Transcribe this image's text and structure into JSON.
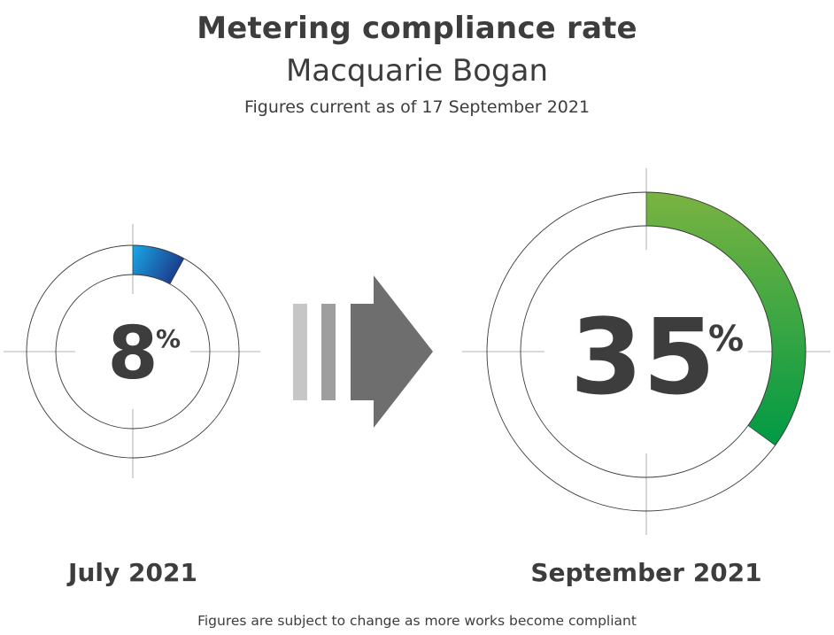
{
  "header": {
    "title": "Metering compliance rate",
    "subtitle": "Macquarie Bogan",
    "currency_note": "Figures current as of 17 September 2021"
  },
  "footnote": "Figures are subject to change as more works become compliant",
  "colors": {
    "text": "#3d3d3d",
    "ring_stroke": "#3a3a3a",
    "july_gradient_start": "#1aa8e6",
    "july_gradient_end": "#1b3c8c",
    "september_gradient_start": "#7ab342",
    "september_gradient_end": "#009a44",
    "arrow_light": "#c6c6c6",
    "arrow_mid": "#9e9e9e",
    "arrow_dark": "#6e6e6e"
  },
  "chart_data": {
    "type": "pie",
    "categories": [
      "July 2021",
      "September 2021"
    ],
    "values": [
      8,
      35
    ],
    "unit": "%",
    "value_labels": [
      "8",
      "35"
    ],
    "max": 100
  }
}
